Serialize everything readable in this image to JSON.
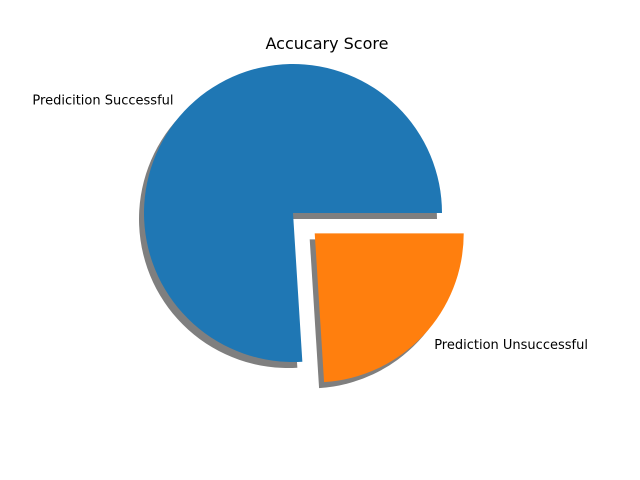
{
  "chart_data": {
    "type": "pie",
    "title": "Accucary Score",
    "shadow": true,
    "start_angle_deg": 0,
    "direction": "counterclockwise",
    "slices": [
      {
        "label": "Predicition Successful",
        "value": 76,
        "explode": 0,
        "color": "#1f77b4"
      },
      {
        "label": "Prediction Unsuccessful",
        "value": 24,
        "explode": 0.2,
        "color": "#ff7f0e"
      }
    ]
  }
}
